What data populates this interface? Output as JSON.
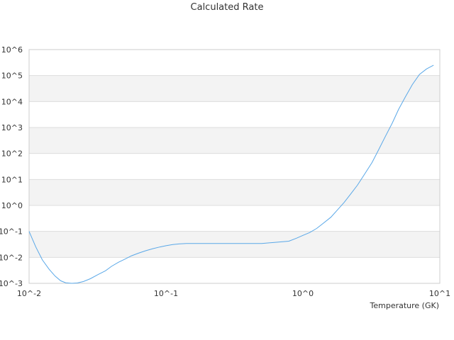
{
  "chart_data": {
    "type": "line",
    "title": "Calculated Rate",
    "xlabel": "Temperature (GK)",
    "ylabel": "",
    "xscale": "log",
    "yscale": "log",
    "xlim": [
      0.01,
      10
    ],
    "ylim": [
      0.001,
      1000000
    ],
    "grid": "horizontal bands",
    "legend": "none",
    "colors": {
      "line": "#5aa8e8",
      "band": "#f3f3f3",
      "grid": "#dddddd",
      "frame": "#cccccc"
    },
    "x_ticks": [
      "10^-2",
      "10^-1",
      "10^0",
      "10^1"
    ],
    "y_ticks": [
      "10^-3",
      "10^-2",
      "10^-1",
      "10^0",
      "10^1",
      "10^2",
      "10^3",
      "10^4",
      "10^5",
      "10^6"
    ],
    "series": [
      {
        "x": [
          0.01,
          0.0112,
          0.0125,
          0.014,
          0.0155,
          0.017,
          0.0185,
          0.0205,
          0.0225,
          0.025,
          0.028,
          0.032,
          0.036,
          0.04,
          0.045,
          0.05,
          0.056,
          0.063,
          0.071,
          0.08,
          0.09,
          0.1,
          0.112,
          0.126,
          0.141,
          0.16,
          0.2,
          0.25,
          0.32,
          0.4,
          0.5,
          0.63,
          0.79,
          0.9,
          1.0,
          1.12,
          1.26,
          1.4,
          1.6,
          1.8,
          2.0,
          2.24,
          2.5,
          2.8,
          3.2,
          3.55,
          4.0,
          4.5,
          5.0,
          5.6,
          6.3,
          7.1,
          8.0,
          9.0
        ],
        "y": [
          0.1,
          0.025,
          0.008,
          0.0035,
          0.0019,
          0.00125,
          0.00105,
          0.001,
          0.00103,
          0.00118,
          0.0015,
          0.0022,
          0.003,
          0.0045,
          0.0065,
          0.0085,
          0.0115,
          0.0145,
          0.018,
          0.0215,
          0.025,
          0.028,
          0.031,
          0.033,
          0.034,
          0.034,
          0.034,
          0.034,
          0.034,
          0.034,
          0.034,
          0.038,
          0.042,
          0.055,
          0.07,
          0.09,
          0.13,
          0.2,
          0.35,
          0.7,
          1.3,
          2.8,
          6.0,
          15,
          45,
          130,
          450,
          1500,
          5000,
          15000,
          45000,
          110000,
          180000,
          250000
        ]
      }
    ]
  }
}
